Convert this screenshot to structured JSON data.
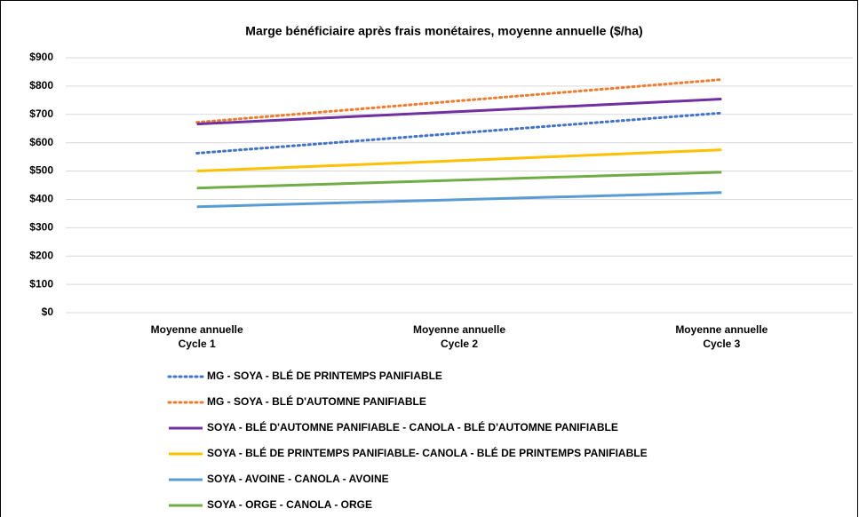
{
  "chart_data": {
    "type": "line",
    "title": "Marge bénéficiaire après frais monétaires, moyenne annuelle ($/ha)",
    "categories": [
      "Moyenne annuelle\nCycle 1",
      "Moyenne annuelle\nCycle 2",
      "Moyenne annuelle\nCycle 3"
    ],
    "ylim": [
      0,
      900
    ],
    "yticks": [
      {
        "value": 0,
        "label": "$0"
      },
      {
        "value": 100,
        "label": "$100"
      },
      {
        "value": 200,
        "label": "$200"
      },
      {
        "value": 300,
        "label": "$300"
      },
      {
        "value": 400,
        "label": "$400"
      },
      {
        "value": 500,
        "label": "$500"
      },
      {
        "value": 600,
        "label": "$600"
      },
      {
        "value": 700,
        "label": "$700"
      },
      {
        "value": 800,
        "label": "$800"
      },
      {
        "value": 900,
        "label": "$900"
      }
    ],
    "grid": true,
    "legend": "bottom",
    "series": [
      {
        "name": "MG - SOYA - BLÉ DE PRINTEMPS PANIFIABLE",
        "color": "#4472c4",
        "style": "dotted",
        "values": [
          563,
          634,
          705
        ]
      },
      {
        "name": "MG - SOYA - BLÉ D'AUTOMNE PANIFIABLE",
        "color": "#ed7d31",
        "style": "dotted",
        "values": [
          672,
          748,
          823
        ]
      },
      {
        "name": "SOYA - BLÉ D'AUTOMNE PANIFIABLE - CANOLA - BLÉ D'AUTOMNE PANIFIABLE",
        "color": "#7030a0",
        "style": "solid",
        "values": [
          666,
          710,
          754
        ]
      },
      {
        "name": "SOYA - BLÉ DE PRINTEMPS PANIFIABLE- CANOLA - BLÉ DE PRINTEMPS PANIFIABLE",
        "color": "#ffc000",
        "style": "solid",
        "values": [
          500,
          537,
          575
        ]
      },
      {
        "name": "SOYA - AVOINE - CANOLA - AVOINE",
        "color": "#5b9bd5",
        "style": "solid",
        "values": [
          374,
          399,
          424
        ]
      },
      {
        "name": "SOYA - ORGE - CANOLA - ORGE",
        "color": "#70ad47",
        "style": "solid",
        "values": [
          440,
          468,
          496
        ]
      }
    ]
  }
}
